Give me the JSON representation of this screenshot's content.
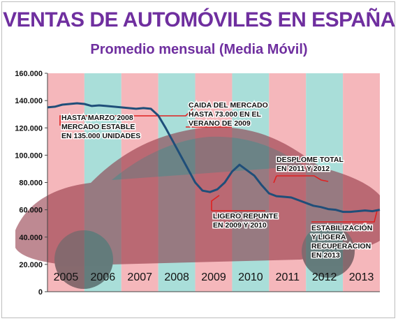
{
  "title": "VENTAS DE AUTOMÓVILES EN ESPAÑA",
  "subtitle": "Promedio mensual (Media Móvil)",
  "colors": {
    "title": "#6f2f9f",
    "band_pink": "#f5b7bb",
    "band_teal": "#a9ded9",
    "line": "#1f4e79",
    "callout": "#e02020",
    "car_body": "#8a2a3a"
  },
  "chart_data": {
    "type": "line",
    "title": "VENTAS DE AUTOMÓVILES EN ESPAÑA",
    "subtitle": "Promedio mensual (Media Móvil)",
    "xlabel": "",
    "ylabel": "",
    "ylim": [
      0,
      160000
    ],
    "yticks": [
      0,
      20000,
      40000,
      60000,
      80000,
      100000,
      120000,
      140000,
      160000
    ],
    "ytick_labels": [
      "0",
      "20.000",
      "40.000",
      "60.000",
      "80.000",
      "100.000",
      "120.000",
      "140.000",
      "160.000"
    ],
    "categories": [
      "2005",
      "2006",
      "2007",
      "2008",
      "2009",
      "2010",
      "2011",
      "2012",
      "2013"
    ],
    "x_range": [
      2005.0,
      2014.0
    ],
    "grid": false,
    "series": [
      {
        "values_x": [
          2005.0,
          2005.2,
          2005.4,
          2005.6,
          2005.8,
          2006.0,
          2006.2,
          2006.4,
          2006.6,
          2006.8,
          2007.0,
          2007.2,
          2007.4,
          2007.6,
          2007.8,
          2008.0,
          2008.2,
          2008.4,
          2008.6,
          2008.8,
          2009.0,
          2009.2,
          2009.4,
          2009.6,
          2009.8,
          2010.0,
          2010.2,
          2010.4,
          2010.6,
          2010.8,
          2011.0,
          2011.2,
          2011.4,
          2011.6,
          2011.8,
          2012.0,
          2012.2,
          2012.4,
          2012.6,
          2012.8,
          2013.0,
          2013.2,
          2013.4,
          2013.6,
          2013.8,
          2014.0
        ],
        "values_y": [
          135000,
          135500,
          137000,
          137500,
          138000,
          137500,
          136000,
          136500,
          136000,
          135500,
          135000,
          134500,
          134000,
          134500,
          134000,
          129000,
          120000,
          110000,
          100000,
          90000,
          80000,
          74000,
          73000,
          75000,
          80000,
          88000,
          93000,
          89000,
          85000,
          78000,
          72000,
          70000,
          69500,
          69000,
          67000,
          65000,
          63000,
          62000,
          60500,
          60000,
          58500,
          58500,
          59000,
          59500,
          59000,
          60000
        ]
      }
    ],
    "annotations": [
      {
        "lines": [
          "HASTA MARZO 2008",
          "MERCADO ESTABLE",
          "EN 135.000 UNIDADES"
        ]
      },
      {
        "lines": [
          "CAIDA DEL MERCADO",
          "HASTA  73.000 EN EL",
          "VERANO DE 2009"
        ]
      },
      {
        "lines": [
          "DESPLOME TOTAL",
          "EN 2011 Y 2012"
        ]
      },
      {
        "lines": [
          "LIGERO REPUNTE",
          "EN 2009 Y 2010"
        ]
      },
      {
        "lines": [
          "ESTABILIZACIÓN",
          "Y LIGERA",
          "RECUPERACION",
          "EN 2013"
        ]
      }
    ]
  }
}
